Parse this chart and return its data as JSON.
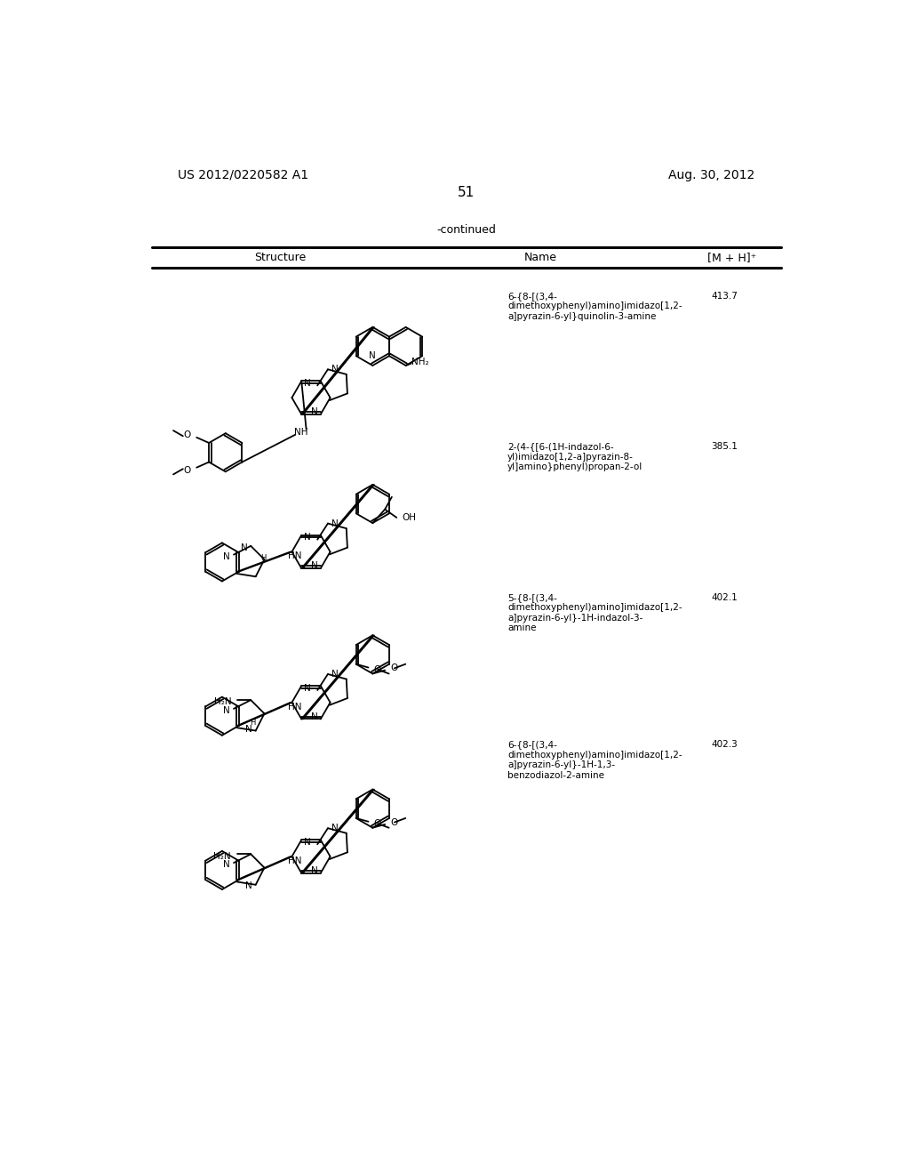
{
  "page_number": "51",
  "left_header": "US 2012/0220582 A1",
  "right_header": "Aug. 30, 2012",
  "continued_label": "-continued",
  "table_headers": [
    "Structure",
    "Name",
    "[M + H]⁺"
  ],
  "rows": [
    {
      "name": "6-{8-[(3,4-\ndimethoxyphenyl)amino]imidazo[1,2-\na]pyrazin-6-yl}quinolin-3-amine",
      "mh": "413.7"
    },
    {
      "name": "2-(4-{[6-(1H-indazol-6-\nyl)imidazo[1,2-a]pyrazin-8-\nyl]amino}phenyl)propan-2-ol",
      "mh": "385.1"
    },
    {
      "name": "5-{8-[(3,4-\ndimethoxyphenyl)amino]imidazo[1,2-\na]pyrazin-6-yl}-1H-indazol-3-\namine",
      "mh": "402.1"
    },
    {
      "name": "6-{8-[(3,4-\ndimethoxyphenyl)amino]imidazo[1,2-\na]pyrazin-6-yl}-1H-1,3-\nbenzodiazol-2-amine",
      "mh": "402.3"
    }
  ],
  "bg_color": "#ffffff",
  "text_color": "#000000",
  "line_color": "#000000"
}
